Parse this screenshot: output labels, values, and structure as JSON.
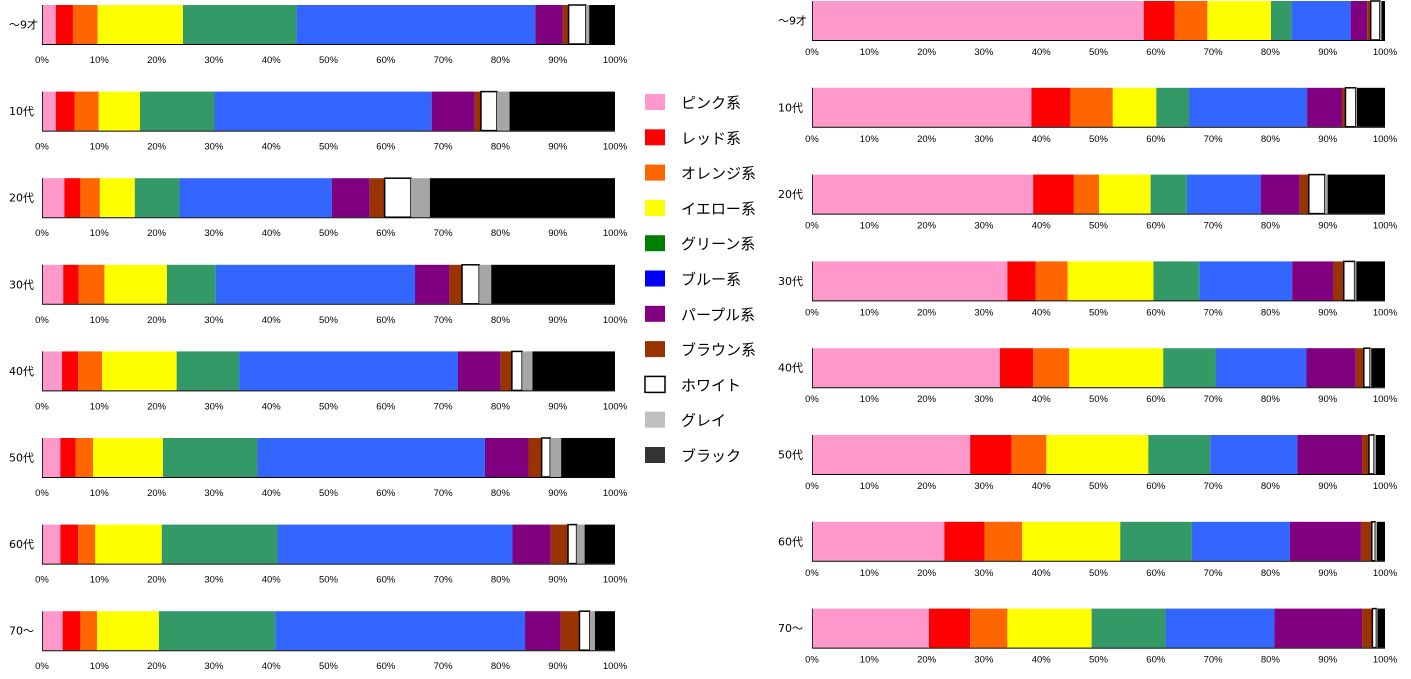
{
  "legend": [
    {
      "label": "ピンク系",
      "color": "#ff99cc",
      "swatch": "#ff99cc"
    },
    {
      "label": "レッド系",
      "color": "#ff0000",
      "swatch": "#ff0000"
    },
    {
      "label": "オレンジ系",
      "color": "#ff6600",
      "swatch": "#ff6600"
    },
    {
      "label": "イエロー系",
      "color": "#ffff00",
      "swatch": "#ffff00"
    },
    {
      "label": "グリーン系",
      "color": "#339966",
      "swatch": "#008000"
    },
    {
      "label": "ブルー系",
      "color": "#3366ff",
      "swatch": "#0000ff"
    },
    {
      "label": "パープル系",
      "color": "#800080",
      "swatch": "#800080"
    },
    {
      "label": "ブラウン系",
      "color": "#993300",
      "swatch": "#993300"
    },
    {
      "label": "ホワイト",
      "color": "#ffffff",
      "swatch": "#ffffff"
    },
    {
      "label": "グレイ",
      "color": "#a6a6a6",
      "swatch": "#c0c0c0"
    },
    {
      "label": "ブラック",
      "color": "#000000",
      "swatch": "#333333"
    }
  ],
  "chart_data": [
    {
      "type": "bar",
      "orientation": "horizontal",
      "stacked": "percent",
      "xlim": [
        0,
        100
      ],
      "x_ticks": [
        "0%",
        "10%",
        "20%",
        "30%",
        "40%",
        "50%",
        "60%",
        "70%",
        "80%",
        "90%",
        "100%"
      ],
      "categories": [
        "～9才",
        "10代",
        "20代",
        "30代",
        "40代",
        "50代",
        "60代",
        "70～"
      ],
      "series": [
        {
          "name": "ピンク系",
          "values": [
            2.4,
            2.4,
            3.9,
            3.7,
            3.5,
            3.2,
            3.2,
            3.6
          ]
        },
        {
          "name": "レッド系",
          "values": [
            3.0,
            3.3,
            2.8,
            2.7,
            2.8,
            2.7,
            3.1,
            3.1
          ]
        },
        {
          "name": "オレンジ系",
          "values": [
            4.3,
            4.2,
            3.4,
            4.5,
            4.2,
            3.0,
            3.0,
            2.9
          ]
        },
        {
          "name": "イエロー系",
          "values": [
            14.9,
            7.2,
            6.1,
            10.9,
            13.0,
            12.2,
            11.6,
            10.8
          ]
        },
        {
          "name": "グリーン系",
          "values": [
            19.8,
            13.0,
            7.8,
            8.5,
            10.9,
            16.5,
            20.2,
            20.3
          ]
        },
        {
          "name": "ブルー系",
          "values": [
            41.7,
            37.9,
            26.6,
            34.8,
            38.2,
            39.7,
            41.0,
            43.6
          ]
        },
        {
          "name": "パープル系",
          "values": [
            4.8,
            7.5,
            6.6,
            6.0,
            7.4,
            7.6,
            6.7,
            6.2
          ]
        },
        {
          "name": "ブラウン系",
          "values": [
            1.0,
            1.1,
            2.6,
            2.2,
            2.0,
            2.3,
            3.0,
            3.3
          ]
        },
        {
          "name": "ホワイト",
          "values": [
            3.0,
            2.8,
            4.6,
            3.0,
            1.8,
            1.5,
            1.5,
            1.8
          ]
        },
        {
          "name": "グレイ",
          "values": [
            0.6,
            2.2,
            3.3,
            2.1,
            1.8,
            1.9,
            1.4,
            0.9
          ]
        },
        {
          "name": "ブラック",
          "values": [
            4.5,
            18.4,
            32.3,
            21.6,
            14.4,
            9.4,
            5.3,
            3.5
          ]
        }
      ]
    },
    {
      "type": "bar",
      "orientation": "horizontal",
      "stacked": "percent",
      "xlim": [
        0,
        100
      ],
      "x_ticks": [
        "0%",
        "10%",
        "20%",
        "30%",
        "40%",
        "50%",
        "60%",
        "70%",
        "80%",
        "90%",
        "100%"
      ],
      "categories": [
        "～9才",
        "10代",
        "20代",
        "30代",
        "40代",
        "50代",
        "60代",
        "70～"
      ],
      "series": [
        {
          "name": "ピンク系",
          "values": [
            57.9,
            38.3,
            38.6,
            34.1,
            32.8,
            27.6,
            23.1,
            20.4
          ]
        },
        {
          "name": "レッド系",
          "values": [
            5.4,
            6.8,
            7.1,
            4.9,
            5.8,
            7.2,
            7.0,
            7.2
          ]
        },
        {
          "name": "オレンジ系",
          "values": [
            5.7,
            7.4,
            4.4,
            5.6,
            6.3,
            6.1,
            6.6,
            6.5
          ]
        },
        {
          "name": "イエロー系",
          "values": [
            11.1,
            7.6,
            9.0,
            15.0,
            16.4,
            17.8,
            17.1,
            14.7
          ]
        },
        {
          "name": "グリーン系",
          "values": [
            3.6,
            5.7,
            6.3,
            8.0,
            9.2,
            10.8,
            12.5,
            12.9
          ]
        },
        {
          "name": "ブルー系",
          "values": [
            10.3,
            20.6,
            12.9,
            16.2,
            15.8,
            15.2,
            17.1,
            19.0
          ]
        },
        {
          "name": "パープル系",
          "values": [
            2.9,
            6.1,
            6.8,
            7.2,
            8.6,
            11.3,
            12.4,
            15.3
          ]
        },
        {
          "name": "ブラウン系",
          "values": [
            0.6,
            0.6,
            1.6,
            1.8,
            1.4,
            1.2,
            1.9,
            1.8
          ]
        },
        {
          "name": "ホワイト",
          "values": [
            1.6,
            1.8,
            2.8,
            1.9,
            1.1,
            0.9,
            0.6,
            0.7
          ]
        },
        {
          "name": "グレイ",
          "values": [
            0.3,
            0.2,
            0.5,
            0.3,
            0.2,
            0.3,
            0.3,
            0.2
          ]
        },
        {
          "name": "ブラック",
          "values": [
            0.6,
            4.9,
            10.0,
            5.0,
            2.4,
            1.6,
            1.4,
            1.3
          ]
        }
      ]
    }
  ]
}
